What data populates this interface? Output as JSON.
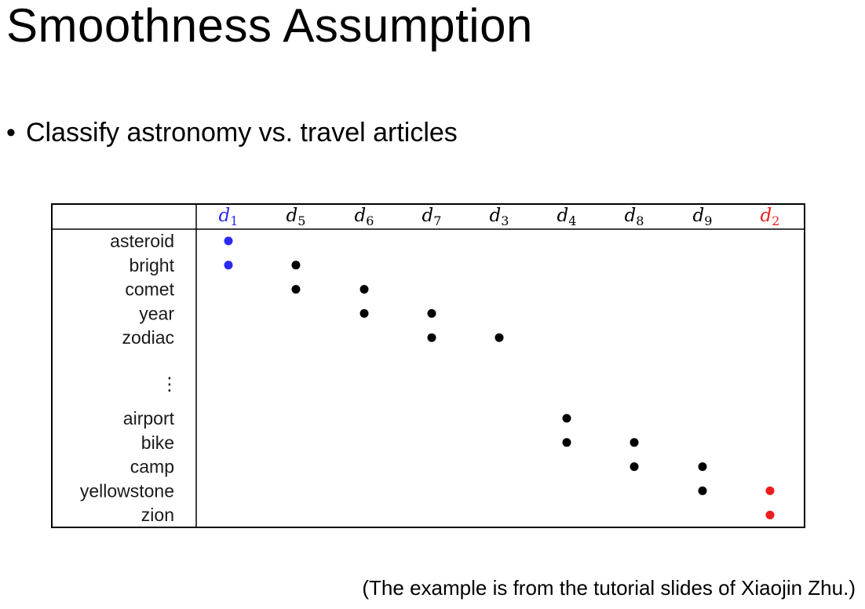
{
  "slide": {
    "title": "Smoothness Assumption",
    "bullet_symbol": "•",
    "bullet": "Classify astronomy vs. travel articles",
    "caption": "(The example is from the tutorial slides of Xiaojin Zhu.)"
  },
  "matrix": {
    "columns": [
      {
        "base": "d",
        "sub": "1",
        "color": "#2a2af0"
      },
      {
        "base": "d",
        "sub": "5",
        "color": "#000000"
      },
      {
        "base": "d",
        "sub": "6",
        "color": "#000000"
      },
      {
        "base": "d",
        "sub": "7",
        "color": "#000000"
      },
      {
        "base": "d",
        "sub": "3",
        "color": "#000000"
      },
      {
        "base": "d",
        "sub": "4",
        "color": "#000000"
      },
      {
        "base": "d",
        "sub": "8",
        "color": "#000000"
      },
      {
        "base": "d",
        "sub": "9",
        "color": "#000000"
      },
      {
        "base": "d",
        "sub": "2",
        "color": "#ee1c1c"
      }
    ],
    "upper_rows": [
      "asteroid",
      "bright",
      "comet",
      "year",
      "zodiac"
    ],
    "ellipsis": "⋮",
    "lower_rows": [
      "airport",
      "bike",
      "camp",
      "yellowstone",
      "zion"
    ],
    "marks": [
      {
        "row": "asteroid",
        "col": 0
      },
      {
        "row": "bright",
        "col": 0
      },
      {
        "row": "bright",
        "col": 1
      },
      {
        "row": "comet",
        "col": 1
      },
      {
        "row": "comet",
        "col": 2
      },
      {
        "row": "year",
        "col": 2
      },
      {
        "row": "year",
        "col": 3
      },
      {
        "row": "zodiac",
        "col": 3
      },
      {
        "row": "zodiac",
        "col": 4
      },
      {
        "row": "airport",
        "col": 5
      },
      {
        "row": "bike",
        "col": 5
      },
      {
        "row": "bike",
        "col": 6
      },
      {
        "row": "camp",
        "col": 6
      },
      {
        "row": "camp",
        "col": 7
      },
      {
        "row": "yellowstone",
        "col": 7
      },
      {
        "row": "yellowstone",
        "col": 8
      },
      {
        "row": "zion",
        "col": 8
      }
    ]
  }
}
